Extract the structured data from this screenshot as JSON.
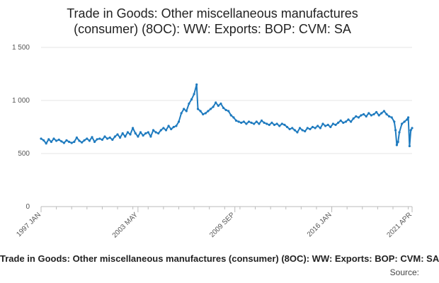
{
  "title": {
    "line1": "Trade in Goods: Other miscellaneous manufactures",
    "line2": "(consumer) (8OC): WW: Exports: BOP: CVM: SA"
  },
  "footer": {
    "series_text": "Trade in Goods: Other miscellaneous manufactures (consumer) (8OC): WW: Exports: BOP: CVM: SA",
    "source_text": "Source:"
  },
  "colors": {
    "line": "#1f7bbf",
    "grid": "#e6e6e6",
    "axis": "#bbbbbb"
  },
  "chart_data": {
    "type": "line",
    "title": "Trade in Goods: Other miscellaneous manufactures (consumer) (8OC): WW: Exports: BOP: CVM: SA",
    "xlabel": "",
    "ylabel": "",
    "ylim": [
      0,
      1500
    ],
    "yticks": [
      0,
      500,
      1000,
      1500
    ],
    "ytick_labels": [
      "0",
      "500",
      "1 000",
      "1 500"
    ],
    "xlim": [
      "1997-01",
      "2021-04"
    ],
    "xticks": [
      "1997-01",
      "2003-05",
      "2009-09",
      "2016-01",
      "2021-04"
    ],
    "xtick_labels": [
      "1997 JAN",
      "2003 MAY",
      "2009 SEP",
      "2016 JAN",
      "2021 APR"
    ],
    "grid": true,
    "series": [
      {
        "name": "",
        "points": [
          [
            "1997-01",
            640
          ],
          [
            "1997-03",
            625
          ],
          [
            "1997-05",
            595
          ],
          [
            "1997-07",
            635
          ],
          [
            "1997-09",
            610
          ],
          [
            "1997-11",
            640
          ],
          [
            "1998-01",
            620
          ],
          [
            "1998-03",
            630
          ],
          [
            "1998-05",
            615
          ],
          [
            "1998-07",
            600
          ],
          [
            "1998-09",
            625
          ],
          [
            "1998-11",
            610
          ],
          [
            "1999-01",
            600
          ],
          [
            "1999-03",
            610
          ],
          [
            "1999-05",
            650
          ],
          [
            "1999-07",
            620
          ],
          [
            "1999-09",
            605
          ],
          [
            "1999-11",
            625
          ],
          [
            "2000-01",
            640
          ],
          [
            "2000-03",
            620
          ],
          [
            "2000-05",
            655
          ],
          [
            "2000-07",
            610
          ],
          [
            "2000-09",
            635
          ],
          [
            "2000-11",
            640
          ],
          [
            "2001-01",
            630
          ],
          [
            "2001-03",
            660
          ],
          [
            "2001-05",
            640
          ],
          [
            "2001-07",
            650
          ],
          [
            "2001-09",
            630
          ],
          [
            "2001-11",
            660
          ],
          [
            "2002-01",
            680
          ],
          [
            "2002-03",
            650
          ],
          [
            "2002-05",
            690
          ],
          [
            "2002-07",
            660
          ],
          [
            "2002-09",
            700
          ],
          [
            "2002-11",
            680
          ],
          [
            "2003-01",
            740
          ],
          [
            "2003-03",
            690
          ],
          [
            "2003-05",
            660
          ],
          [
            "2003-07",
            700
          ],
          [
            "2003-09",
            670
          ],
          [
            "2003-11",
            690
          ],
          [
            "2004-01",
            700
          ],
          [
            "2004-03",
            660
          ],
          [
            "2004-05",
            720
          ],
          [
            "2004-07",
            700
          ],
          [
            "2004-09",
            690
          ],
          [
            "2004-11",
            720
          ],
          [
            "2005-01",
            740
          ],
          [
            "2005-03",
            720
          ],
          [
            "2005-05",
            760
          ],
          [
            "2005-07",
            730
          ],
          [
            "2005-09",
            750
          ],
          [
            "2005-11",
            760
          ],
          [
            "2006-01",
            800
          ],
          [
            "2006-03",
            880
          ],
          [
            "2006-05",
            920
          ],
          [
            "2006-07",
            900
          ],
          [
            "2006-09",
            970
          ],
          [
            "2006-11",
            1010
          ],
          [
            "2007-01",
            1060
          ],
          [
            "2007-03",
            1150
          ],
          [
            "2007-04",
            920
          ],
          [
            "2007-06",
            900
          ],
          [
            "2007-08",
            870
          ],
          [
            "2007-10",
            880
          ],
          [
            "2007-12",
            900
          ],
          [
            "2008-02",
            920
          ],
          [
            "2008-04",
            940
          ],
          [
            "2008-06",
            980
          ],
          [
            "2008-08",
            950
          ],
          [
            "2008-10",
            970
          ],
          [
            "2008-12",
            930
          ],
          [
            "2009-02",
            910
          ],
          [
            "2009-04",
            900
          ],
          [
            "2009-06",
            860
          ],
          [
            "2009-08",
            840
          ],
          [
            "2009-10",
            810
          ],
          [
            "2009-12",
            800
          ],
          [
            "2010-02",
            790
          ],
          [
            "2010-04",
            800
          ],
          [
            "2010-06",
            780
          ],
          [
            "2010-08",
            800
          ],
          [
            "2010-10",
            790
          ],
          [
            "2010-12",
            780
          ],
          [
            "2011-02",
            800
          ],
          [
            "2011-04",
            780
          ],
          [
            "2011-06",
            810
          ],
          [
            "2011-08",
            790
          ],
          [
            "2011-10",
            780
          ],
          [
            "2011-12",
            770
          ],
          [
            "2012-02",
            790
          ],
          [
            "2012-04",
            770
          ],
          [
            "2012-06",
            780
          ],
          [
            "2012-08",
            760
          ],
          [
            "2012-10",
            780
          ],
          [
            "2012-12",
            770
          ],
          [
            "2013-02",
            750
          ],
          [
            "2013-04",
            730
          ],
          [
            "2013-06",
            740
          ],
          [
            "2013-08",
            720
          ],
          [
            "2013-10",
            700
          ],
          [
            "2013-12",
            740
          ],
          [
            "2014-02",
            720
          ],
          [
            "2014-04",
            710
          ],
          [
            "2014-06",
            740
          ],
          [
            "2014-08",
            730
          ],
          [
            "2014-10",
            750
          ],
          [
            "2014-12",
            740
          ],
          [
            "2015-02",
            760
          ],
          [
            "2015-04",
            740
          ],
          [
            "2015-06",
            780
          ],
          [
            "2015-08",
            760
          ],
          [
            "2015-10",
            770
          ],
          [
            "2015-12",
            750
          ],
          [
            "2016-02",
            780
          ],
          [
            "2016-04",
            770
          ],
          [
            "2016-06",
            790
          ],
          [
            "2016-08",
            810
          ],
          [
            "2016-10",
            790
          ],
          [
            "2016-12",
            800
          ],
          [
            "2017-02",
            820
          ],
          [
            "2017-04",
            800
          ],
          [
            "2017-06",
            830
          ],
          [
            "2017-08",
            850
          ],
          [
            "2017-10",
            840
          ],
          [
            "2017-12",
            860
          ],
          [
            "2018-02",
            870
          ],
          [
            "2018-04",
            850
          ],
          [
            "2018-06",
            880
          ],
          [
            "2018-08",
            860
          ],
          [
            "2018-10",
            870
          ],
          [
            "2018-12",
            890
          ],
          [
            "2019-02",
            860
          ],
          [
            "2019-04",
            880
          ],
          [
            "2019-06",
            900
          ],
          [
            "2019-08",
            870
          ],
          [
            "2019-10",
            850
          ],
          [
            "2019-12",
            840
          ],
          [
            "2020-02",
            800
          ],
          [
            "2020-03",
            720
          ],
          [
            "2020-04",
            580
          ],
          [
            "2020-05",
            610
          ],
          [
            "2020-06",
            700
          ],
          [
            "2020-08",
            780
          ],
          [
            "2020-10",
            800
          ],
          [
            "2020-12",
            820
          ],
          [
            "2021-01",
            840
          ],
          [
            "2021-02",
            570
          ],
          [
            "2021-03",
            720
          ],
          [
            "2021-04",
            740
          ]
        ]
      }
    ]
  }
}
